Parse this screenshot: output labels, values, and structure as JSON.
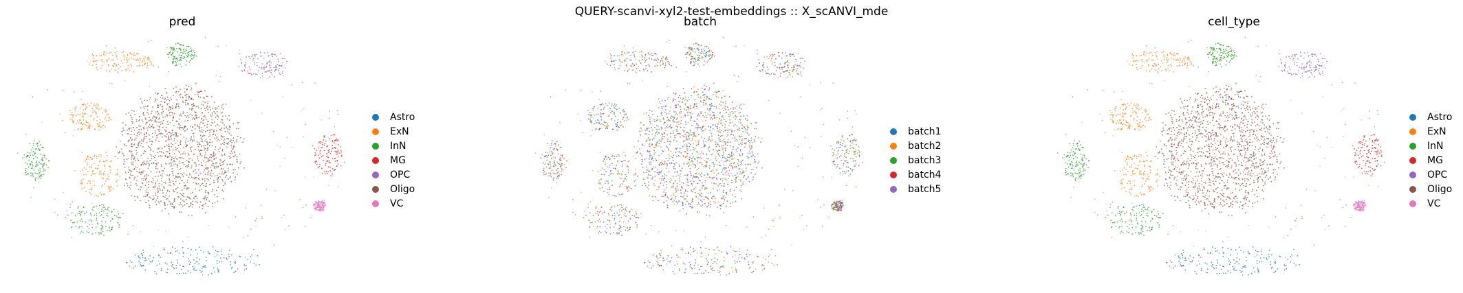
{
  "chart_data": {
    "type": "scatter",
    "title": "QUERY-scanvi-xyl2-test-embeddings :: X_scANVI_mde",
    "grid": false,
    "axes_visible": false,
    "legend_placement": "right",
    "panels": [
      {
        "title": "pred",
        "color_by": "pred",
        "legend": [
          {
            "label": "Astro",
            "color": "#1f77b4"
          },
          {
            "label": "ExN",
            "color": "#ff7f0e"
          },
          {
            "label": "InN",
            "color": "#2ca02c"
          },
          {
            "label": "MG",
            "color": "#d62728"
          },
          {
            "label": "OPC",
            "color": "#9467bd"
          },
          {
            "label": "Oligo",
            "color": "#8c564b"
          },
          {
            "label": "VC",
            "color": "#e377c2"
          }
        ]
      },
      {
        "title": "batch",
        "color_by": "batch",
        "legend": [
          {
            "label": "batch1",
            "color": "#1f77b4"
          },
          {
            "label": "batch2",
            "color": "#ff7f0e"
          },
          {
            "label": "batch3",
            "color": "#2ca02c"
          },
          {
            "label": "batch4",
            "color": "#d62728"
          },
          {
            "label": "batch5",
            "color": "#9467bd"
          }
        ]
      },
      {
        "title": "cell_type",
        "color_by": "cell_type",
        "legend": [
          {
            "label": "Astro",
            "color": "#1f77b4"
          },
          {
            "label": "ExN",
            "color": "#ff7f0e"
          },
          {
            "label": "InN",
            "color": "#2ca02c"
          },
          {
            "label": "MG",
            "color": "#d62728"
          },
          {
            "label": "OPC",
            "color": "#9467bd"
          },
          {
            "label": "Oligo",
            "color": "#8c564b"
          },
          {
            "label": "VC",
            "color": "#e377c2"
          }
        ]
      }
    ],
    "clusters": [
      {
        "id": "oligo",
        "cell_type": "Oligo",
        "x": 0.0,
        "y": 0.05,
        "rx": 0.78,
        "ry": 0.95
      },
      {
        "id": "astro",
        "cell_type": "Astro",
        "x": 0.15,
        "y": -1.55,
        "rx": 0.85,
        "ry": 0.22
      },
      {
        "id": "mg",
        "cell_type": "MG",
        "x": 1.83,
        "y": 0.0,
        "rx": 0.18,
        "ry": 0.32
      },
      {
        "id": "opc",
        "cell_type": "OPC",
        "x": 1.05,
        "y": 1.3,
        "rx": 0.35,
        "ry": 0.2
      },
      {
        "id": "vc",
        "cell_type": "VC",
        "x": 1.72,
        "y": -0.75,
        "rx": 0.08,
        "ry": 0.08
      },
      {
        "id": "exn-upper",
        "cell_type": "ExN",
        "x": -1.1,
        "y": 0.55,
        "rx": 0.3,
        "ry": 0.22
      },
      {
        "id": "exn-lower",
        "cell_type": "ExN",
        "x": -1.0,
        "y": -0.3,
        "rx": 0.26,
        "ry": 0.35
      },
      {
        "id": "inn-left",
        "cell_type": "InN",
        "x": -1.78,
        "y": -0.1,
        "rx": 0.16,
        "ry": 0.3
      },
      {
        "id": "inn-bottom",
        "cell_type": "InN",
        "x": -1.05,
        "y": -0.95,
        "rx": 0.38,
        "ry": 0.24
      },
      {
        "id": "top-mixed",
        "cell_type": "ExN",
        "x": -0.75,
        "y": 1.35,
        "rx": 0.45,
        "ry": 0.16
      },
      {
        "id": "top-small",
        "cell_type": "InN",
        "x": 0.02,
        "y": 1.45,
        "rx": 0.18,
        "ry": 0.18
      }
    ]
  }
}
